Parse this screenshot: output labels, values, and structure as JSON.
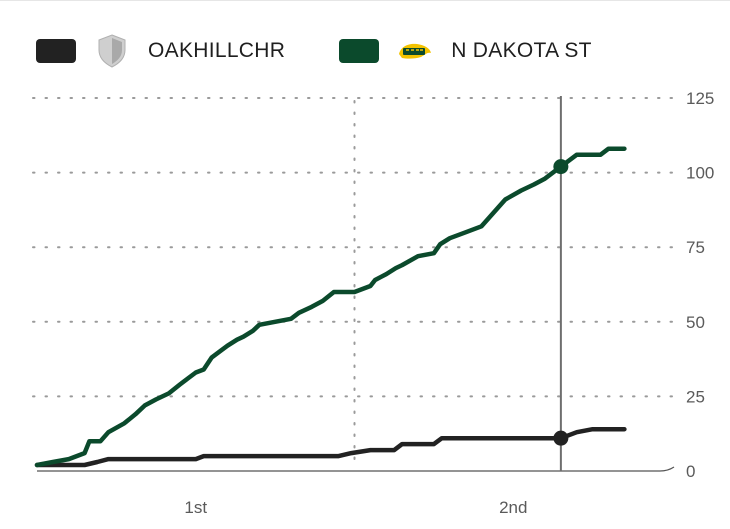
{
  "legend": {
    "items": [
      {
        "name": "OAKHILLCHR",
        "color": "#222222",
        "logo": "shield-icon"
      },
      {
        "name": "N DAKOTA ST",
        "color": "#0b4a2c",
        "logo": "ndsu-bison-logo"
      }
    ]
  },
  "chart_data": {
    "type": "line",
    "title": "",
    "xlabel": "",
    "ylabel": "",
    "ylim": [
      0,
      125
    ],
    "yticks": [
      125,
      100,
      75,
      50,
      25,
      0
    ],
    "y_axis_position": "right",
    "x_period_labels": [
      "1st",
      "2nd"
    ],
    "game_minutes": 40,
    "current_minute": 33,
    "grid": true,
    "legend_position": "top-left",
    "series": [
      {
        "name": "OAKHILLCHR",
        "color": "#222222",
        "points": [
          [
            0,
            2
          ],
          [
            3,
            2
          ],
          [
            3.8,
            3
          ],
          [
            4.5,
            4
          ],
          [
            10,
            4
          ],
          [
            10.5,
            5
          ],
          [
            19,
            5
          ],
          [
            19.8,
            6
          ],
          [
            21,
            7
          ],
          [
            22.5,
            7
          ],
          [
            23,
            9
          ],
          [
            25,
            9
          ],
          [
            25.5,
            11
          ],
          [
            33,
            11
          ],
          [
            34,
            13
          ],
          [
            35,
            14
          ],
          [
            37,
            14
          ]
        ]
      },
      {
        "name": "N DAKOTA ST",
        "color": "#0b4a2c",
        "points": [
          [
            0,
            2
          ],
          [
            1,
            3
          ],
          [
            2,
            4
          ],
          [
            3,
            6
          ],
          [
            3.3,
            10
          ],
          [
            4,
            10
          ],
          [
            4.5,
            13
          ],
          [
            5.5,
            16
          ],
          [
            6.2,
            19
          ],
          [
            6.8,
            22
          ],
          [
            7.5,
            24
          ],
          [
            8.3,
            26
          ],
          [
            9,
            29
          ],
          [
            9.5,
            31
          ],
          [
            10,
            33
          ],
          [
            10.5,
            34
          ],
          [
            11,
            38
          ],
          [
            11.5,
            40
          ],
          [
            12,
            42
          ],
          [
            12.6,
            44
          ],
          [
            13,
            45
          ],
          [
            13.6,
            47
          ],
          [
            14,
            49
          ],
          [
            15,
            50
          ],
          [
            16,
            51
          ],
          [
            16.5,
            53
          ],
          [
            17.3,
            55
          ],
          [
            18,
            57
          ],
          [
            18.7,
            60
          ],
          [
            20,
            60
          ],
          [
            21,
            62
          ],
          [
            21.3,
            64
          ],
          [
            22,
            66
          ],
          [
            22.6,
            68
          ],
          [
            23,
            69
          ],
          [
            24,
            72
          ],
          [
            25,
            73
          ],
          [
            25.4,
            76
          ],
          [
            26,
            78
          ],
          [
            27,
            80
          ],
          [
            28,
            82
          ],
          [
            28.5,
            85
          ],
          [
            29,
            88
          ],
          [
            29.5,
            91
          ],
          [
            30.5,
            94
          ],
          [
            31.3,
            96
          ],
          [
            32,
            98
          ],
          [
            33,
            102
          ],
          [
            33.5,
            104
          ],
          [
            34,
            106
          ],
          [
            35.5,
            106
          ],
          [
            36,
            108
          ],
          [
            37,
            108
          ]
        ]
      }
    ]
  }
}
